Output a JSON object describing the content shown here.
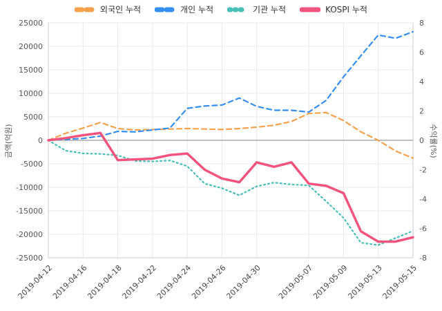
{
  "chart_data": {
    "type": "line",
    "x": [
      "2019-04-12",
      "2019-04-15",
      "2019-04-16",
      "2019-04-17",
      "2019-04-18",
      "2019-04-19",
      "2019-04-22",
      "2019-04-23",
      "2019-04-24",
      "2019-04-25",
      "2019-04-26",
      "2019-04-29",
      "2019-04-30",
      "2019-05-02",
      "2019-05-03",
      "2019-05-07",
      "2019-05-08",
      "2019-05-09",
      "2019-05-10",
      "2019-05-13",
      "2019-05-14",
      "2019-05-15"
    ],
    "x_tick_indices": [
      0,
      2,
      4,
      6,
      8,
      10,
      12,
      15,
      17,
      19,
      21
    ],
    "x_tick_labels": [
      "2019-04-12",
      "2019-04-16",
      "2019-04-18",
      "2019-04-22",
      "2019-04-24",
      "2019-04-26",
      "2019-04-30",
      "2019-05-07",
      "2019-05-09",
      "2019-05-13",
      "2019-05-15"
    ],
    "series": [
      {
        "name": "외국인 누적",
        "axis": "left",
        "style": "dashed",
        "color": "#f5a14b",
        "width": 2.2,
        "values": [
          0,
          1500,
          2600,
          3800,
          2500,
          2200,
          2300,
          2400,
          2500,
          2400,
          2300,
          2500,
          2800,
          3200,
          4000,
          5700,
          5900,
          4200,
          1800,
          0,
          -2300,
          -3800
        ]
      },
      {
        "name": "개인 누적",
        "axis": "left",
        "style": "dashed",
        "color": "#338ef2",
        "width": 2.2,
        "values": [
          0,
          200,
          400,
          900,
          1900,
          1800,
          2200,
          2600,
          6800,
          7300,
          7500,
          9000,
          7200,
          6400,
          6400,
          6000,
          8500,
          13500,
          18000,
          22400,
          21700,
          23100
        ]
      },
      {
        "name": "기관 누적",
        "axis": "left",
        "style": "dotted",
        "color": "#45bfb7",
        "width": 2.2,
        "values": [
          0,
          -2200,
          -2800,
          -2900,
          -3200,
          -4400,
          -4500,
          -4300,
          -5500,
          -9200,
          -10200,
          -11700,
          -9800,
          -9000,
          -9400,
          -9600,
          -13000,
          -16500,
          -21800,
          -22300,
          -20800,
          -19300
        ]
      },
      {
        "name": "KOSPI 누적",
        "axis": "right",
        "style": "solid",
        "color": "#f2547d",
        "width": 3.5,
        "values": [
          0,
          0.15,
          0.35,
          0.5,
          -1.35,
          -1.3,
          -1.25,
          -1.0,
          -0.9,
          -2.0,
          -2.6,
          -2.85,
          -1.5,
          -1.8,
          -1.5,
          -2.95,
          -3.1,
          -3.6,
          -6.2,
          -6.9,
          -6.9,
          -6.6
        ]
      }
    ],
    "left_axis": {
      "label": "금액(억원)",
      "min": -25000,
      "max": 25000,
      "ticks": [
        25000,
        20000,
        15000,
        10000,
        5000,
        0,
        -5000,
        -10000,
        -15000,
        -20000,
        -25000
      ]
    },
    "right_axis": {
      "label": "수익률(%)",
      "min": -8,
      "max": 8,
      "ticks": [
        8,
        6,
        4,
        2,
        0,
        -2,
        -4,
        -6,
        -8
      ]
    },
    "grid": true,
    "legend_position": "top",
    "colors": {
      "grid": "#e9e9e9",
      "zero_line": "#999999",
      "spine": "#cccccc",
      "tick_text": "#555555"
    }
  }
}
